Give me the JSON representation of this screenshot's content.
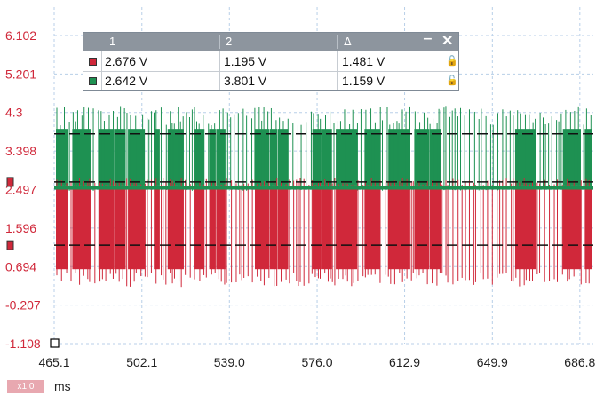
{
  "measurements": {
    "headers": [
      "1",
      "2",
      "Δ"
    ],
    "rows": [
      {
        "channel_color": "#d0283a",
        "v1": "2.676 V",
        "v2": "1.195 V",
        "delta": "1.481 V"
      },
      {
        "channel_color": "#1e9152",
        "v1": "2.642 V",
        "v2": "3.801 V",
        "delta": "1.159 V"
      }
    ],
    "minimize_icon": "minimize-icon",
    "close_icon": "close-icon",
    "lock_icon": "lock-icon"
  },
  "chart_data": {
    "type": "line",
    "y_ticks": [
      "6.102",
      "5.201",
      "4.3",
      "3.398",
      "2.497",
      "1.596",
      "0.694",
      "-0.207",
      "-1.108"
    ],
    "x_ticks": [
      "465.1",
      "502.1",
      "539.0",
      "576.0",
      "612.9",
      "649.9",
      "686.8"
    ],
    "ylim": [
      -1.108,
      6.102
    ],
    "xlim": [
      465.1,
      686.8
    ],
    "grid": true,
    "series": [
      {
        "color": "#1e9152",
        "low": 2.55,
        "high": 4.0
      },
      {
        "color": "#d0283a",
        "low": 0.55,
        "high": 2.6
      }
    ],
    "rulers": [
      3.801,
      2.676,
      1.195
    ]
  },
  "x_unit": "ms",
  "zoom": "x1.0"
}
